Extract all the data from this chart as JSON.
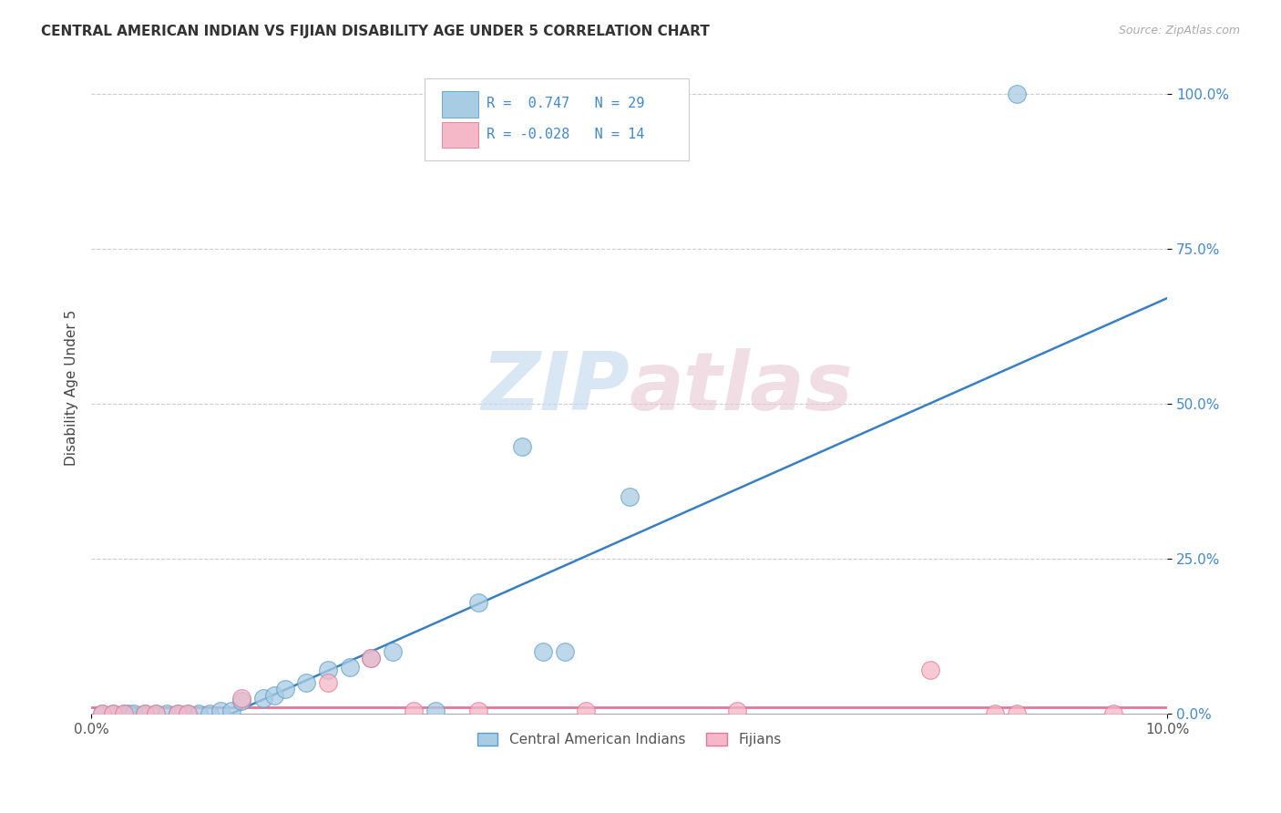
{
  "title": "CENTRAL AMERICAN INDIAN VS FIJIAN DISABILITY AGE UNDER 5 CORRELATION CHART",
  "source": "Source: ZipAtlas.com",
  "ylabel": "Disability Age Under 5",
  "yticks": [
    "0.0%",
    "25.0%",
    "50.0%",
    "75.0%",
    "100.0%"
  ],
  "ytick_vals": [
    0.0,
    0.25,
    0.5,
    0.75,
    1.0
  ],
  "xtick_vals": [
    0.0,
    0.1
  ],
  "xtick_labels": [
    "0.0%",
    "10.0%"
  ],
  "legend_blue_label": "Central American Indians",
  "legend_pink_label": "Fijians",
  "blue_color": "#a8cce4",
  "pink_color": "#f4b8c8",
  "blue_edge_color": "#5b9ec9",
  "pink_edge_color": "#e07898",
  "line_blue_color": "#3a7fc1",
  "line_pink_color": "#e07898",
  "watermark_color": "#d8e8f0",
  "watermark_pink": "#f0d0da",
  "blue_points": [
    [
      0.001,
      0.0
    ],
    [
      0.002,
      0.0
    ],
    [
      0.003,
      0.0
    ],
    [
      0.0035,
      0.0
    ],
    [
      0.004,
      0.0
    ],
    [
      0.005,
      0.0
    ],
    [
      0.006,
      0.0
    ],
    [
      0.007,
      0.0
    ],
    [
      0.008,
      0.0
    ],
    [
      0.009,
      0.0
    ],
    [
      0.01,
      0.0
    ],
    [
      0.011,
      0.0
    ],
    [
      0.012,
      0.005
    ],
    [
      0.013,
      0.005
    ],
    [
      0.014,
      0.02
    ],
    [
      0.016,
      0.025
    ],
    [
      0.017,
      0.03
    ],
    [
      0.018,
      0.04
    ],
    [
      0.02,
      0.05
    ],
    [
      0.022,
      0.07
    ],
    [
      0.024,
      0.075
    ],
    [
      0.026,
      0.09
    ],
    [
      0.028,
      0.1
    ],
    [
      0.032,
      0.005
    ],
    [
      0.036,
      0.18
    ],
    [
      0.04,
      0.43
    ],
    [
      0.042,
      0.1
    ],
    [
      0.044,
      0.1
    ],
    [
      0.05,
      0.35
    ],
    [
      0.086,
      1.0
    ]
  ],
  "pink_points": [
    [
      0.001,
      0.0
    ],
    [
      0.002,
      0.0
    ],
    [
      0.003,
      0.0
    ],
    [
      0.005,
      0.0
    ],
    [
      0.006,
      0.0
    ],
    [
      0.008,
      0.0
    ],
    [
      0.009,
      0.0
    ],
    [
      0.014,
      0.025
    ],
    [
      0.022,
      0.05
    ],
    [
      0.026,
      0.09
    ],
    [
      0.03,
      0.005
    ],
    [
      0.036,
      0.005
    ],
    [
      0.046,
      0.005
    ],
    [
      0.06,
      0.005
    ],
    [
      0.078,
      0.07
    ],
    [
      0.084,
      0.0
    ],
    [
      0.086,
      0.0
    ],
    [
      0.095,
      0.0
    ]
  ],
  "blue_line_x": [
    0.013,
    0.1
  ],
  "blue_line_y": [
    0.0,
    0.67
  ],
  "pink_line_x": [
    0.0,
    0.1
  ],
  "pink_line_y": [
    0.01,
    0.01
  ],
  "xlim": [
    0.0,
    0.1
  ],
  "ylim": [
    0.0,
    1.05
  ]
}
